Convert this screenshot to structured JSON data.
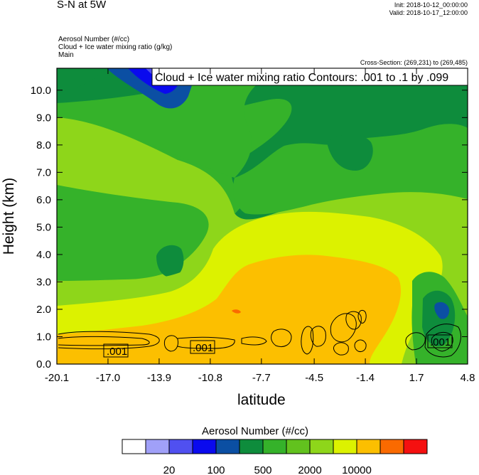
{
  "header": {
    "title": "S-N at 5W",
    "init": "Init: 2018-10-12_00:00:00",
    "valid": "Valid: 2018-10-17_12:00:00",
    "fields": [
      "Aerosol Number   (#/cc)",
      "Cloud + Ice water mixing ratio   (g/kg)",
      "Main"
    ],
    "cross_section": "Cross-Section: (269,231) to (269,485)"
  },
  "contour_label": "Cloud + Ice water mixing ratio Contours: .001 to .1 by .099",
  "contour_line_labels": [
    ".001",
    ".001",
    ".001"
  ],
  "chart_data": {
    "type": "heatmap",
    "title": "S-N at 5W",
    "xlabel": "latitude",
    "ylabel": "Height (km)",
    "x_ticks": [
      "-20.1",
      "-17.0",
      "-13.9",
      "-10.8",
      "-7.7",
      "-4.5",
      "-1.4",
      "1.7",
      "4.8"
    ],
    "y_ticks": [
      "0.0",
      "1.0",
      "2.0",
      "3.0",
      "4.0",
      "5.0",
      "6.0",
      "7.0",
      "8.0",
      "9.0",
      "10.0"
    ],
    "xlim": [
      -20.1,
      4.8
    ],
    "ylim": [
      0,
      10.8
    ],
    "colorbar": {
      "title": "Aerosol Number  (#/cc)",
      "colors": [
        "#ffffff",
        "#a0a0f8",
        "#5050f0",
        "#0a0aee",
        "#0b4fa3",
        "#0e8c3c",
        "#35b22a",
        "#62c21e",
        "#8ed61a",
        "#dcf200",
        "#fcbf00",
        "#fa6a00",
        "#f51010"
      ],
      "labels": [
        "20",
        "100",
        "500",
        "2000",
        "10000"
      ]
    }
  }
}
